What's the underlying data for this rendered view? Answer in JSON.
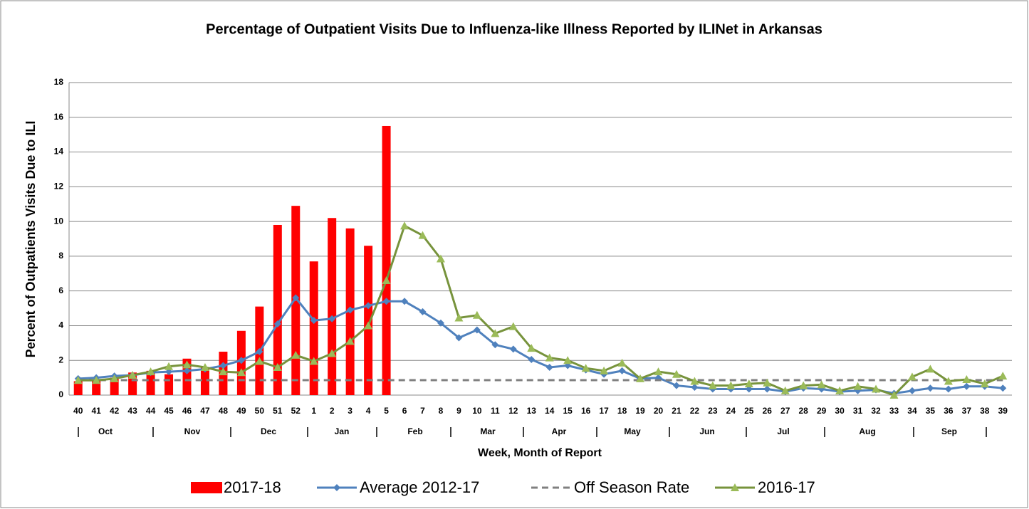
{
  "chart_data": {
    "type": "combo",
    "title": "Percentage of Outpatient Visits Due to Influenza-like Illness Reported by ILINet in Arkansas",
    "x_label": "Week, Month of Report",
    "y_label": "Percent of Outpatients Visits Due to ILI",
    "categories": [
      "40",
      "41",
      "42",
      "43",
      "44",
      "45",
      "46",
      "47",
      "48",
      "49",
      "50",
      "51",
      "52",
      "1",
      "2",
      "3",
      "4",
      "5",
      "6",
      "7",
      "8",
      "9",
      "10",
      "11",
      "12",
      "13",
      "14",
      "15",
      "16",
      "17",
      "18",
      "19",
      "20",
      "21",
      "22",
      "23",
      "24",
      "25",
      "26",
      "27",
      "28",
      "29",
      "30",
      "31",
      "32",
      "33",
      "34",
      "35",
      "36",
      "37",
      "38",
      "39"
    ],
    "months": [
      "Oct",
      "Nov",
      "Dec",
      "Jan",
      "Feb",
      "Mar",
      "Apr",
      "May",
      "Jun",
      "Jul",
      "Aug",
      "Sep"
    ],
    "ylim": [
      0,
      18
    ],
    "yticks": [
      0,
      2,
      4,
      6,
      8,
      10,
      12,
      14,
      16,
      18
    ],
    "grid": true,
    "series": [
      {
        "name": "2017-18",
        "type": "bar",
        "color": "#ff0000",
        "values": [
          0.8,
          0.8,
          1.0,
          1.3,
          1.4,
          1.2,
          2.1,
          1.6,
          2.5,
          3.7,
          5.1,
          9.8,
          10.9,
          7.7,
          10.2,
          9.6,
          8.6,
          15.5,
          null,
          null,
          null,
          null,
          null,
          null,
          null,
          null,
          null,
          null,
          null,
          null,
          null,
          null,
          null,
          null,
          null,
          null,
          null,
          null,
          null,
          null,
          null,
          null,
          null,
          null,
          null,
          null,
          null,
          null,
          null,
          null,
          null,
          null
        ]
      },
      {
        "name": "Average 2012-17",
        "type": "line",
        "marker": "diamond",
        "color": "#4f81bd",
        "values": [
          0.95,
          1.0,
          1.1,
          1.15,
          1.3,
          1.35,
          1.4,
          1.5,
          1.7,
          2.0,
          2.5,
          4.1,
          5.6,
          4.3,
          4.4,
          4.9,
          5.15,
          5.4,
          5.4,
          4.8,
          4.15,
          3.3,
          3.75,
          2.9,
          2.65,
          2.05,
          1.6,
          1.7,
          1.45,
          1.2,
          1.4,
          0.95,
          1.0,
          0.55,
          0.45,
          0.35,
          0.35,
          0.35,
          0.35,
          0.2,
          0.4,
          0.35,
          0.2,
          0.25,
          0.3,
          0.1,
          0.25,
          0.4,
          0.35,
          0.5,
          0.5,
          0.4
        ]
      },
      {
        "name": "Off Season Rate",
        "type": "line",
        "marker": "none",
        "dashed": true,
        "color": "#808080",
        "values": [
          0.86,
          0.86,
          0.86,
          0.86,
          0.86,
          0.86,
          0.86,
          0.86,
          0.86,
          0.86,
          0.86,
          0.86,
          0.86,
          0.86,
          0.86,
          0.86,
          0.86,
          0.86,
          0.86,
          0.86,
          0.86,
          0.86,
          0.86,
          0.86,
          0.86,
          0.86,
          0.86,
          0.86,
          0.86,
          0.86,
          0.86,
          0.86,
          0.86,
          0.86,
          0.86,
          0.86,
          0.86,
          0.86,
          0.86,
          0.86,
          0.86,
          0.86,
          0.86,
          0.86,
          0.86,
          0.86,
          0.86,
          0.86,
          0.86,
          0.86,
          0.86,
          0.86
        ]
      },
      {
        "name": "2016-17",
        "type": "line",
        "marker": "triangle",
        "color": "#77933c",
        "marker_color": "#9bbb59",
        "values": [
          0.85,
          0.85,
          0.95,
          1.15,
          1.35,
          1.65,
          1.75,
          1.6,
          1.35,
          1.3,
          1.95,
          1.6,
          2.3,
          1.95,
          2.4,
          3.1,
          4.0,
          6.6,
          9.75,
          9.2,
          7.85,
          4.45,
          4.6,
          3.55,
          3.95,
          2.7,
          2.15,
          2.0,
          1.55,
          1.4,
          1.85,
          0.95,
          1.35,
          1.2,
          0.8,
          0.55,
          0.55,
          0.65,
          0.7,
          0.25,
          0.55,
          0.6,
          0.25,
          0.5,
          0.35,
          0.0,
          1.05,
          1.5,
          0.8,
          0.9,
          0.65,
          1.1
        ]
      }
    ]
  }
}
